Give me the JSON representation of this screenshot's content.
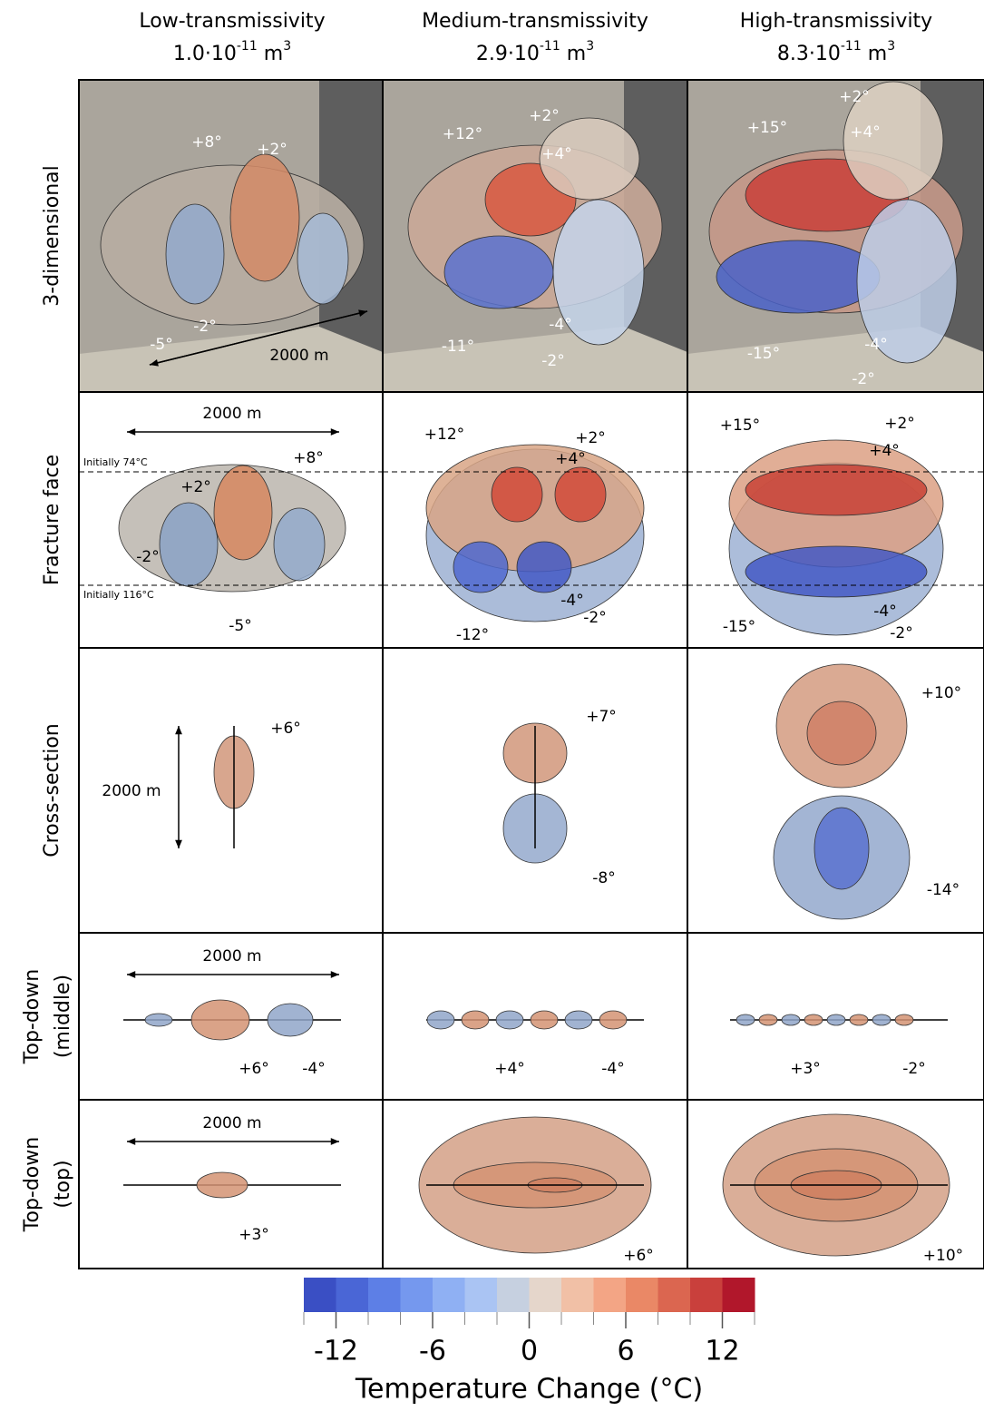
{
  "columns": [
    {
      "title": "Low-transmissivity",
      "value": "1.0·10",
      "exponent": "-11",
      "unit": " m",
      "unit_exponent": "3"
    },
    {
      "title": "Medium-transmissivity",
      "value": "2.9·10",
      "exponent": "-11",
      "unit": " m",
      "unit_exponent": "3"
    },
    {
      "title": "High-transmissivity",
      "value": "8.3·10",
      "exponent": "-11",
      "unit": " m",
      "unit_exponent": "3"
    }
  ],
  "rows": [
    {
      "label": [
        "3-dimensional"
      ],
      "cells": [
        [
          "+8°",
          "+2°",
          "-5°",
          "-2°",
          "2000 m"
        ],
        [
          "+12°",
          "+2°",
          "+4°",
          "-11°",
          "-4°",
          "-2°"
        ],
        [
          "+2°",
          "+15°",
          "+4°",
          "-15°",
          "-4°",
          "-2°"
        ]
      ]
    },
    {
      "label": [
        "Fracture face"
      ],
      "cells": [
        [
          "2000 m",
          "Initially 74°C",
          "+8°",
          "+2°",
          "-2°",
          "Initially 116°C",
          "-5°"
        ],
        [
          "+12°",
          "+2°",
          "+4°",
          "-4°",
          "-12°",
          "-2°"
        ],
        [
          "+15°",
          "+2°",
          "+4°",
          "-15°",
          "-4°",
          "-2°"
        ]
      ]
    },
    {
      "label": [
        "Cross-section"
      ],
      "cells": [
        [
          "2000 m",
          "+6°"
        ],
        [
          "+7°",
          "-8°"
        ],
        [
          "+10°",
          "-14°"
        ]
      ]
    },
    {
      "label": [
        "Top-down",
        "(middle)"
      ],
      "cells": [
        [
          "2000 m",
          "+6°",
          "-4°"
        ],
        [
          "+4°",
          "-4°"
        ],
        [
          "+3°",
          "-2°"
        ]
      ]
    },
    {
      "label": [
        "Top-down",
        "(top)"
      ],
      "cells": [
        [
          "2000 m",
          "+3°"
        ],
        [
          "+6°"
        ],
        [
          "+10°"
        ]
      ]
    }
  ],
  "colorbar": {
    "title": "Temperature Change (°C)",
    "lim": [
      -14,
      14
    ],
    "ticks": [
      -12,
      -6,
      0,
      6,
      12
    ],
    "colors": [
      "#3a4fc4",
      "#4a66d6",
      "#5d7fe6",
      "#7598ee",
      "#8fb0f3",
      "#aac4f3",
      "#c6d0e0",
      "#e5d6cb",
      "#f1c0a6",
      "#f3a585",
      "#ea8866",
      "#db6650",
      "#c9403c",
      "#b1172b"
    ]
  }
}
